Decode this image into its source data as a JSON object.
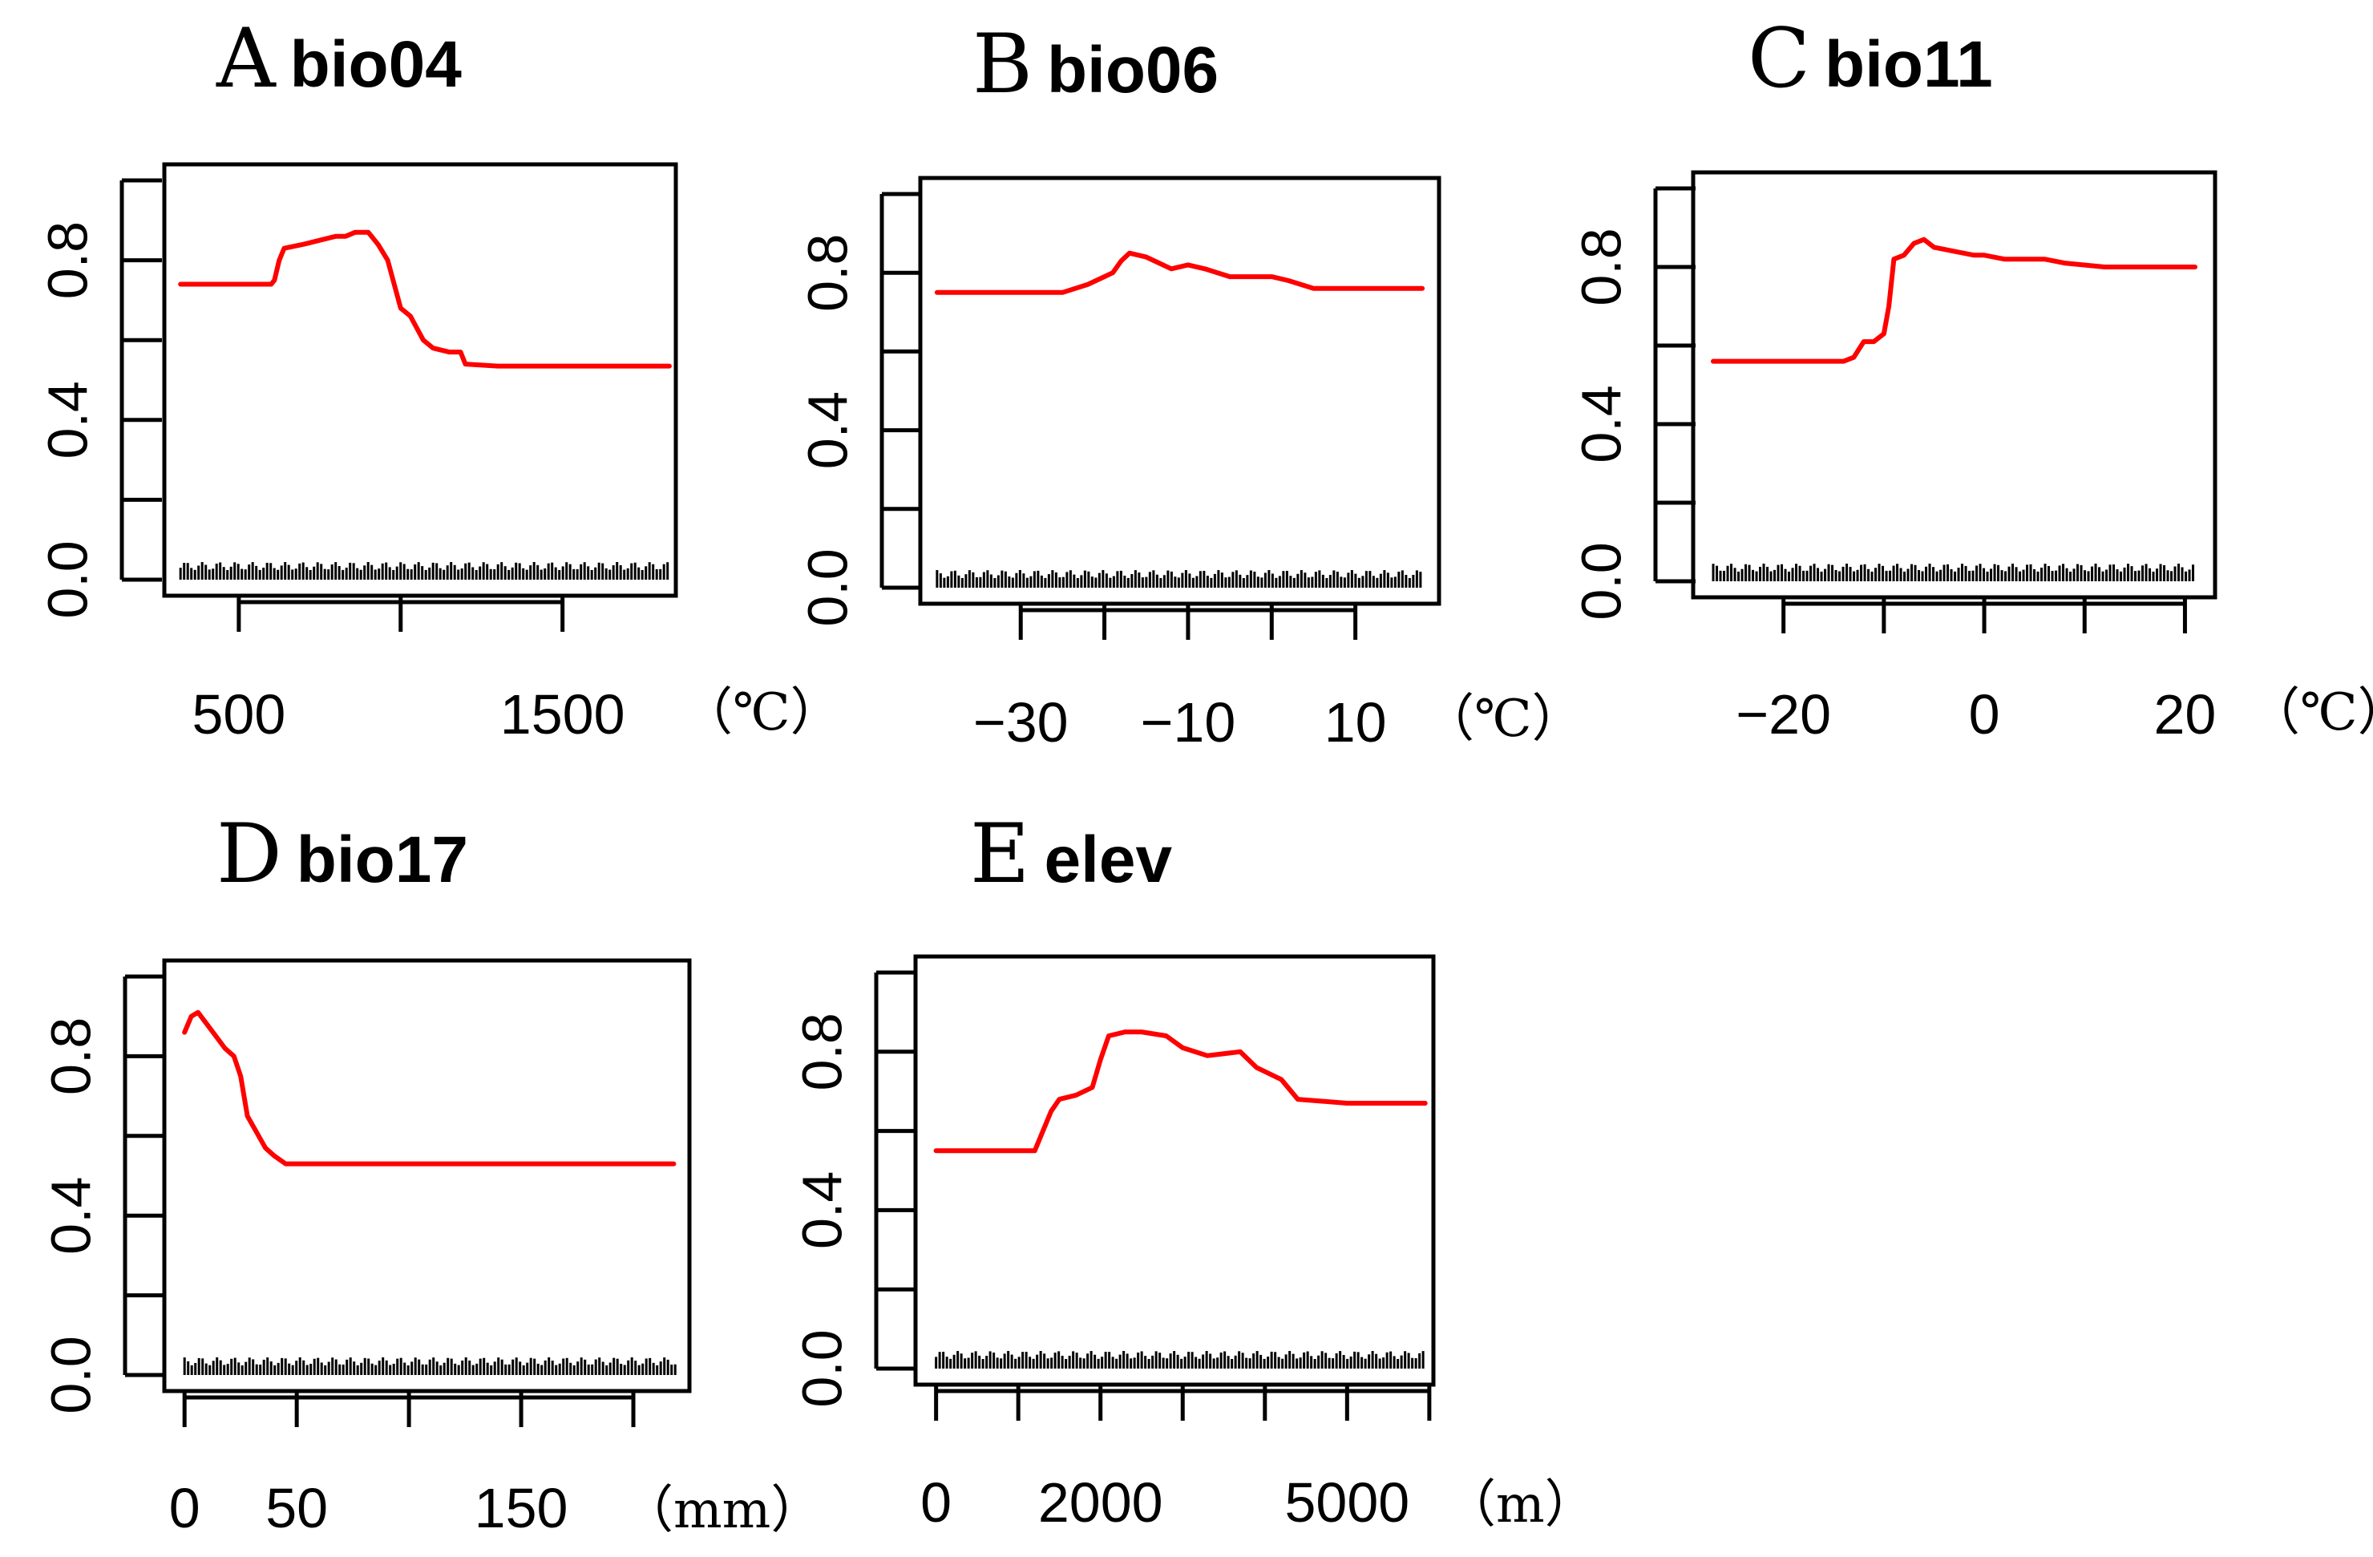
{
  "chart_data": [
    {
      "type": "line",
      "panel": "A",
      "title": "bio04",
      "unit": "（℃）",
      "xlim": [
        270,
        1850
      ],
      "ylim": [
        0,
        1
      ],
      "x_ticks": [
        500,
        1000,
        1500
      ],
      "x_tick_labels": [
        "500",
        "",
        "1500"
      ],
      "y_ticks": [
        0,
        0.2,
        0.4,
        0.6,
        0.8,
        1.0
      ],
      "y_tick_labels": [
        "0.0",
        "",
        "0.4",
        "",
        "0.8",
        ""
      ],
      "rug_range": [
        320,
        1830
      ],
      "series": [
        {
          "color": "#ff0000",
          "x": [
            320,
            400,
            500,
            600,
            610,
            625,
            640,
            700,
            750,
            800,
            830,
            860,
            880,
            900,
            930,
            960,
            1000,
            1030,
            1070,
            1100,
            1150,
            1185,
            1200,
            1300,
            1500,
            1700,
            1830
          ],
          "y": [
            0.74,
            0.74,
            0.74,
            0.74,
            0.75,
            0.8,
            0.83,
            0.84,
            0.85,
            0.86,
            0.86,
            0.87,
            0.87,
            0.87,
            0.84,
            0.8,
            0.68,
            0.66,
            0.6,
            0.58,
            0.57,
            0.57,
            0.54,
            0.535,
            0.535,
            0.535,
            0.535
          ]
        }
      ]
    },
    {
      "type": "line",
      "panel": "B",
      "title": "bio06",
      "unit": "（℃）",
      "xlim": [
        -42,
        20
      ],
      "ylim": [
        0,
        1
      ],
      "x_ticks": [
        -30,
        -20,
        -10,
        0,
        10
      ],
      "x_tick_labels": [
        "−30",
        "",
        "−10",
        "",
        "10"
      ],
      "y_ticks": [
        0,
        0.2,
        0.4,
        0.6,
        0.8,
        1.0
      ],
      "y_tick_labels": [
        "0.0",
        "",
        "0.4",
        "",
        "0.8",
        ""
      ],
      "rug_range": [
        -40,
        18
      ],
      "series": [
        {
          "color": "#ff0000",
          "x": [
            -40,
            -30,
            -27,
            -25,
            -22,
            -20,
            -19,
            -18,
            -17,
            -15,
            -14,
            -12,
            -10,
            -8,
            -5,
            0,
            2,
            5,
            10,
            15,
            18
          ],
          "y": [
            0.75,
            0.75,
            0.75,
            0.75,
            0.77,
            0.79,
            0.8,
            0.83,
            0.85,
            0.84,
            0.83,
            0.81,
            0.82,
            0.81,
            0.79,
            0.79,
            0.78,
            0.76,
            0.76,
            0.76,
            0.76
          ]
        }
      ]
    },
    {
      "type": "line",
      "panel": "C",
      "title": "bio11",
      "unit": "（℃）",
      "xlim": [
        -29,
        23
      ],
      "ylim": [
        0,
        1
      ],
      "x_ticks": [
        -20,
        -10,
        0,
        10,
        20
      ],
      "x_tick_labels": [
        "−20",
        "",
        "0",
        "",
        "20"
      ],
      "y_ticks": [
        0,
        0.2,
        0.4,
        0.6,
        0.8,
        1.0
      ],
      "y_tick_labels": [
        "0.0",
        "",
        "0.4",
        "",
        "0.8",
        ""
      ],
      "rug_range": [
        -27,
        21
      ],
      "series": [
        {
          "color": "#ff0000",
          "x": [
            -27,
            -20,
            -14,
            -13,
            -12,
            -11,
            -10,
            -9.5,
            -9,
            -8,
            -7,
            -6,
            -5,
            -3,
            -1,
            0,
            2,
            4,
            6,
            8,
            12,
            16,
            21
          ],
          "y": [
            0.56,
            0.56,
            0.56,
            0.57,
            0.61,
            0.61,
            0.63,
            0.7,
            0.82,
            0.83,
            0.86,
            0.87,
            0.85,
            0.84,
            0.83,
            0.83,
            0.82,
            0.82,
            0.82,
            0.81,
            0.8,
            0.8,
            0.8
          ]
        }
      ]
    },
    {
      "type": "line",
      "panel": "D",
      "title": "bio17",
      "unit": "（mm）",
      "xlim": [
        -9,
        225
      ],
      "ylim": [
        0,
        1
      ],
      "x_ticks": [
        0,
        50,
        100,
        150,
        200
      ],
      "x_tick_labels": [
        "0",
        "50",
        "",
        "150",
        ""
      ],
      "y_ticks": [
        0,
        0.2,
        0.4,
        0.6,
        0.8,
        1.0
      ],
      "y_tick_labels": [
        "0.0",
        "",
        "0.4",
        "",
        "0.8",
        ""
      ],
      "rug_range": [
        0,
        220
      ],
      "series": [
        {
          "color": "#ff0000",
          "x": [
            0,
            3,
            6,
            10,
            14,
            18,
            22,
            25,
            28,
            32,
            36,
            40,
            45,
            50,
            60,
            80,
            100,
            150,
            200,
            218
          ],
          "y": [
            0.86,
            0.9,
            0.91,
            0.88,
            0.85,
            0.82,
            0.8,
            0.75,
            0.65,
            0.61,
            0.57,
            0.55,
            0.53,
            0.53,
            0.53,
            0.53,
            0.53,
            0.53,
            0.53,
            0.53
          ]
        }
      ]
    },
    {
      "type": "line",
      "panel": "E",
      "title": "elev",
      "unit": "（m）",
      "xlim": [
        -250,
        6050
      ],
      "ylim": [
        0,
        1
      ],
      "x_ticks": [
        0,
        1000,
        2000,
        3000,
        4000,
        5000,
        6000
      ],
      "x_tick_labels": [
        "0",
        "",
        "2000",
        "",
        "",
        "5000",
        ""
      ],
      "y_ticks": [
        0,
        0.2,
        0.4,
        0.6,
        0.8,
        1.0
      ],
      "y_tick_labels": [
        "0.0",
        "",
        "0.4",
        "",
        "0.8",
        ""
      ],
      "rug_range": [
        0,
        5950
      ],
      "series": [
        {
          "color": "#ff0000",
          "x": [
            0,
            300,
            600,
            1000,
            1200,
            1400,
            1500,
            1700,
            1900,
            2000,
            2100,
            2300,
            2500,
            2800,
            3000,
            3300,
            3700,
            3900,
            4200,
            4400,
            5000,
            5500,
            5950
          ],
          "y": [
            0.55,
            0.55,
            0.55,
            0.55,
            0.55,
            0.65,
            0.68,
            0.69,
            0.71,
            0.78,
            0.84,
            0.85,
            0.85,
            0.84,
            0.81,
            0.79,
            0.8,
            0.76,
            0.73,
            0.68,
            0.67,
            0.67,
            0.67
          ]
        }
      ]
    }
  ]
}
